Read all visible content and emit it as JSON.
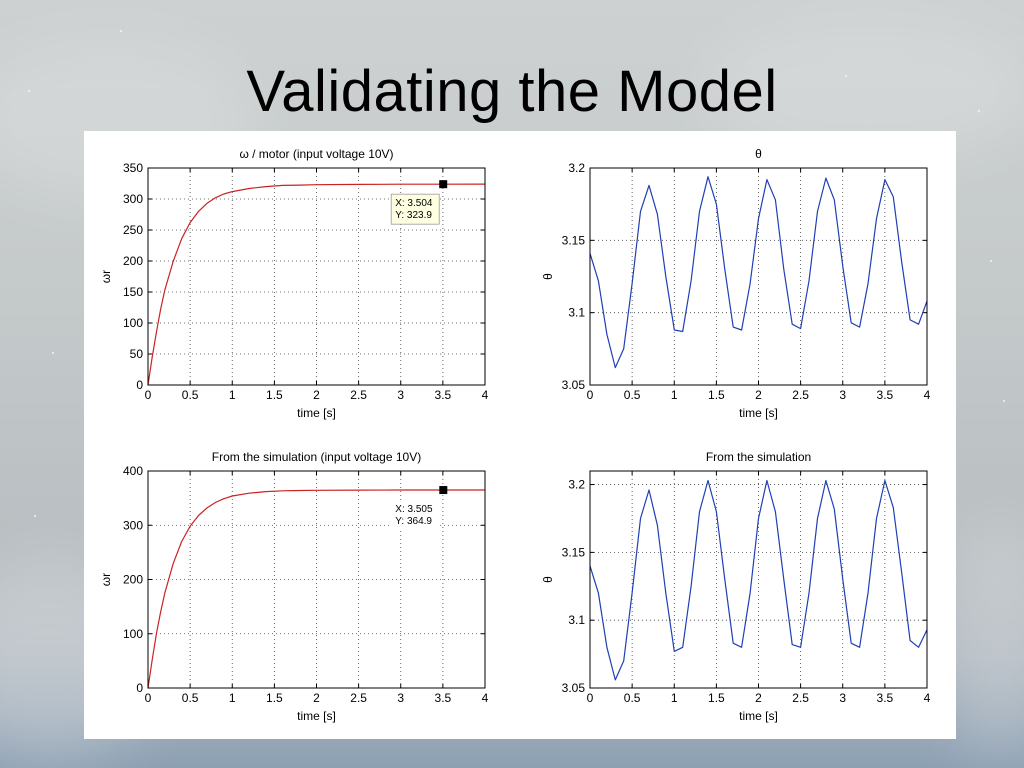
{
  "slide": {
    "title": "Validating the Model"
  },
  "colors": {
    "red_series": "#cc2222",
    "blue_series": "#1f3fb5",
    "panel_bg": "#ffffff"
  },
  "chart_data": [
    {
      "type": "line",
      "title": "ω / motor (input voltage 10V)",
      "xlabel": "time [s]",
      "ylabel": "ωr",
      "xlim": [
        0,
        4
      ],
      "ylim": [
        0,
        350
      ],
      "xticks": [
        "0",
        "0.5",
        "1",
        "1.5",
        "2",
        "2.5",
        "3",
        "3.5",
        "4"
      ],
      "yticks": [
        "0",
        "50",
        "100",
        "150",
        "200",
        "250",
        "300",
        "350"
      ],
      "grid": true,
      "series": [
        {
          "color": "#cc2222",
          "x": [
            0,
            0.05,
            0.1,
            0.15,
            0.2,
            0.3,
            0.4,
            0.5,
            0.6,
            0.7,
            0.8,
            0.9,
            1.0,
            1.2,
            1.4,
            1.6,
            1.8,
            2.0,
            2.5,
            3.0,
            3.5,
            4.0
          ],
          "y": [
            0,
            45,
            85,
            122,
            153,
            200,
            236,
            262,
            280,
            293,
            302,
            308,
            312,
            317,
            320,
            322,
            322.5,
            323,
            323.5,
            323.8,
            323.9,
            324
          ]
        }
      ],
      "datatip": {
        "x": 3.504,
        "y": 323.9,
        "text_x": "X: 3.504",
        "text_y": "Y: 323.9"
      }
    },
    {
      "type": "line",
      "title": "θ",
      "xlabel": "time [s]",
      "ylabel": "θ",
      "xlim": [
        0,
        4
      ],
      "ylim": [
        3.05,
        3.2
      ],
      "xticks": [
        "0",
        "0.5",
        "1",
        "1.5",
        "2",
        "2.5",
        "3",
        "3.5",
        "4"
      ],
      "yticks": [
        "3.05",
        "3.1",
        "3.15",
        "3.2"
      ],
      "grid": true,
      "series": [
        {
          "color": "#1f3fb5",
          "x": [
            0,
            0.1,
            0.2,
            0.3,
            0.4,
            0.5,
            0.6,
            0.7,
            0.8,
            0.9,
            1.0,
            1.1,
            1.2,
            1.3,
            1.4,
            1.5,
            1.6,
            1.7,
            1.8,
            1.9,
            2.0,
            2.1,
            2.2,
            2.3,
            2.4,
            2.5,
            2.6,
            2.7,
            2.8,
            2.9,
            3.0,
            3.1,
            3.2,
            3.3,
            3.4,
            3.5,
            3.6,
            3.7,
            3.8,
            3.9,
            4.0
          ],
          "y": [
            3.141,
            3.122,
            3.085,
            3.062,
            3.075,
            3.12,
            3.17,
            3.188,
            3.168,
            3.125,
            3.088,
            3.087,
            3.122,
            3.17,
            3.194,
            3.175,
            3.13,
            3.09,
            3.088,
            3.12,
            3.165,
            3.192,
            3.178,
            3.13,
            3.092,
            3.089,
            3.122,
            3.17,
            3.193,
            3.178,
            3.132,
            3.093,
            3.09,
            3.12,
            3.165,
            3.192,
            3.18,
            3.135,
            3.095,
            3.092,
            3.108
          ]
        }
      ]
    },
    {
      "type": "line",
      "title": "From the simulation (input voltage 10V)",
      "xlabel": "time [s]",
      "ylabel": "ωr",
      "xlim": [
        0,
        4
      ],
      "ylim": [
        0,
        400
      ],
      "xticks": [
        "0",
        "0.5",
        "1",
        "1.5",
        "2",
        "2.5",
        "3",
        "3.5",
        "4"
      ],
      "yticks": [
        "0",
        "100",
        "200",
        "300",
        "400"
      ],
      "grid": true,
      "series": [
        {
          "color": "#cc2222",
          "x": [
            0,
            0.05,
            0.1,
            0.15,
            0.2,
            0.3,
            0.4,
            0.5,
            0.6,
            0.7,
            0.8,
            0.9,
            1.0,
            1.2,
            1.4,
            1.6,
            1.8,
            2.0,
            2.5,
            3.0,
            3.5,
            4.0
          ],
          "y": [
            0,
            52,
            100,
            140,
            175,
            230,
            270,
            298,
            318,
            332,
            342,
            349,
            354,
            359,
            362,
            363.5,
            364,
            364.5,
            364.8,
            364.9,
            364.9,
            365
          ]
        }
      ],
      "datatip": {
        "x": 3.505,
        "y": 364.9,
        "text_x": "X: 3.505",
        "text_y": "Y: 364.9"
      }
    },
    {
      "type": "line",
      "title": "From the simulation",
      "xlabel": "time [s]",
      "ylabel": "θ",
      "xlim": [
        0,
        4
      ],
      "ylim": [
        3.05,
        3.21
      ],
      "xticks": [
        "0",
        "0.5",
        "1",
        "1.5",
        "2",
        "2.5",
        "3",
        "3.5",
        "4"
      ],
      "yticks": [
        "3.05",
        "3.1",
        "3.15",
        "3.2"
      ],
      "grid": true,
      "series": [
        {
          "color": "#1f3fb5",
          "x": [
            0,
            0.1,
            0.2,
            0.3,
            0.4,
            0.5,
            0.6,
            0.7,
            0.8,
            0.9,
            1.0,
            1.1,
            1.2,
            1.3,
            1.4,
            1.5,
            1.6,
            1.7,
            1.8,
            1.9,
            2.0,
            2.1,
            2.2,
            2.3,
            2.4,
            2.5,
            2.6,
            2.7,
            2.8,
            2.9,
            3.0,
            3.1,
            3.2,
            3.3,
            3.4,
            3.5,
            3.6,
            3.7,
            3.8,
            3.9,
            4.0
          ],
          "y": [
            3.14,
            3.12,
            3.08,
            3.056,
            3.07,
            3.12,
            3.175,
            3.196,
            3.17,
            3.12,
            3.077,
            3.08,
            3.125,
            3.18,
            3.203,
            3.18,
            3.13,
            3.083,
            3.08,
            3.12,
            3.175,
            3.203,
            3.18,
            3.13,
            3.082,
            3.08,
            3.12,
            3.175,
            3.203,
            3.182,
            3.13,
            3.083,
            3.08,
            3.12,
            3.175,
            3.203,
            3.183,
            3.135,
            3.085,
            3.08,
            3.093
          ]
        }
      ]
    }
  ]
}
